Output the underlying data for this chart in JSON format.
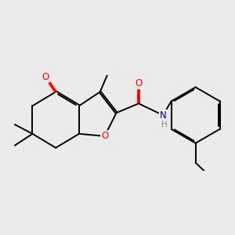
{
  "bg_color": "#ebebeb",
  "bond_color": "#000000",
  "bond_width": 1.4,
  "atom_colors": {
    "O": "#ff0000",
    "N": "#0000bb",
    "C": "#000000",
    "H": "#777777"
  },
  "font_size": 8.5,
  "dbo": 0.018
}
